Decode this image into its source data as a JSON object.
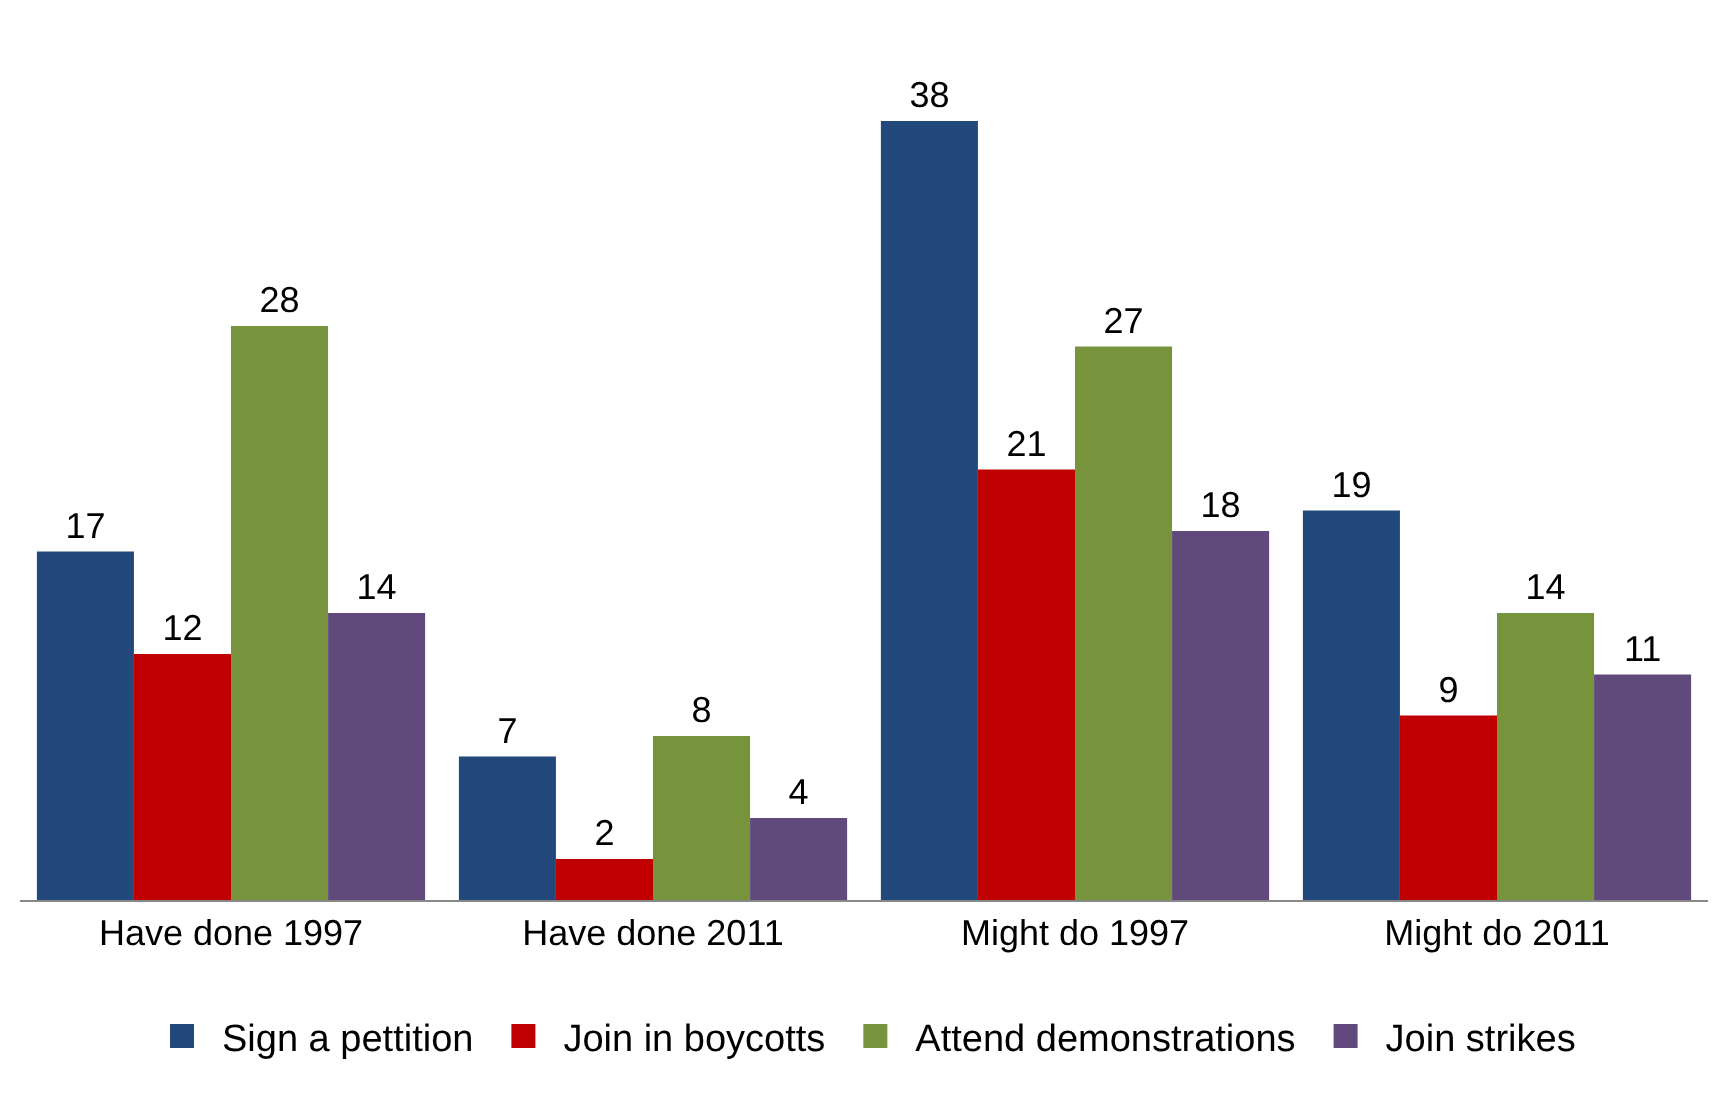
{
  "chart_data": {
    "type": "bar",
    "categories": [
      "Have done 1997",
      "Have done 2011",
      "Might do 1997",
      "Might do 2011"
    ],
    "series": [
      {
        "name": "Sign a pettition",
        "color": "#23497c",
        "values": [
          17,
          7,
          38,
          19
        ]
      },
      {
        "name": "Join in boycotts",
        "color": "#c00000",
        "values": [
          12,
          2,
          21,
          9
        ]
      },
      {
        "name": "Attend demonstrations",
        "color": "#77933c",
        "values": [
          28,
          8,
          27,
          14
        ]
      },
      {
        "name": "Join strikes",
        "color": "#604a7b",
        "values": [
          14,
          4,
          18,
          11
        ]
      }
    ],
    "data_labels": true,
    "legend": "bottom"
  }
}
